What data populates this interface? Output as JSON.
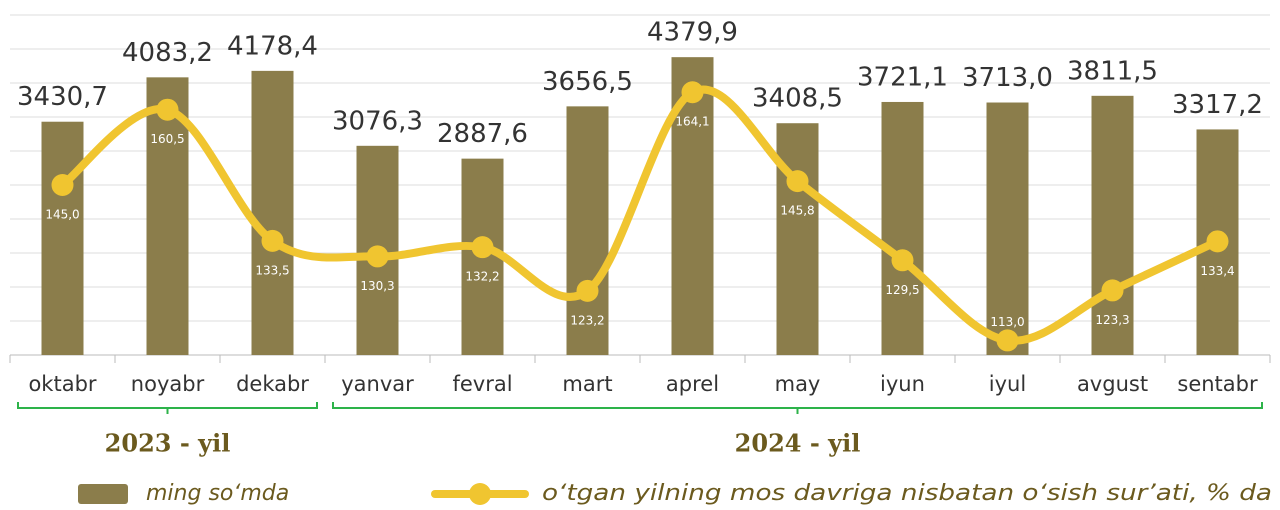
{
  "chart_data": {
    "type": "bar_line",
    "categories": [
      "oktabr",
      "noyabr",
      "dekabr",
      "yanvar",
      "fevral",
      "mart",
      "aprel",
      "may",
      "iyun",
      "iyul",
      "avgust",
      "sentabr"
    ],
    "series": [
      {
        "name": "ming so‘mda",
        "type": "bar",
        "color": "#8b7d4b",
        "values": [
          3430.7,
          4083.2,
          4178.4,
          3076.3,
          2887.6,
          3656.5,
          4379.9,
          3408.5,
          3721.1,
          3713.0,
          3811.5,
          3317.2
        ],
        "value_labels": [
          "3430,7",
          "4083,2",
          "4178,4",
          "3076,3",
          "2887,6",
          "3656,5",
          "4379,9",
          "3408,5",
          "3721,1",
          "3713,0",
          "3811,5",
          "3317,2"
        ]
      },
      {
        "name": "o‘tgan yilning mos davriga nisbatan o‘sish sur’ati, % da",
        "type": "line",
        "axis": "y2",
        "color": "#f0c530",
        "values": [
          145.0,
          160.5,
          133.5,
          130.3,
          132.2,
          123.2,
          164.1,
          145.8,
          129.5,
          113.0,
          123.3,
          133.4
        ],
        "value_labels": [
          "145,0",
          "160,5",
          "133,5",
          "130,3",
          "132,2",
          "123,2",
          "164,1",
          "145,8",
          "129,5",
          "113,0",
          "123,3",
          "133,4"
        ]
      }
    ],
    "groups": [
      {
        "label": "2023 - yil",
        "from": "oktabr",
        "to": "dekabr"
      },
      {
        "label": "2024 - yil",
        "from": "yanvar",
        "to": "sentabr"
      }
    ],
    "ylim": [
      0,
      5000
    ],
    "yticks": [
      0,
      500,
      1000,
      1500,
      2000,
      2500,
      3000,
      3500,
      4000,
      4500,
      5000
    ],
    "y2lim": [
      110,
      180
    ],
    "grid": true
  }
}
